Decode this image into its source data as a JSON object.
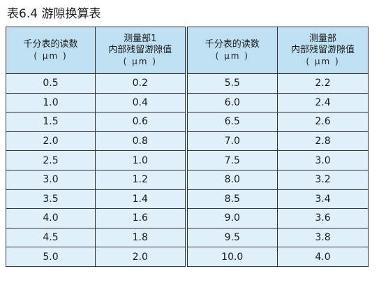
{
  "title": "表6.4 游隙换算表",
  "headers": [
    {
      "line1": "千分表的读数",
      "line2": "",
      "unit": "( μm )"
    },
    {
      "line1": "测量部1",
      "line2": "内部残留游隙值",
      "unit": "( μm )"
    },
    {
      "line1": "千分表的读数",
      "line2": "",
      "unit": "( μm )"
    },
    {
      "line1": "测量部",
      "line2": "内部残留游隙值",
      "unit": "( μm )"
    }
  ],
  "rows": [
    [
      "0.5",
      "0.2",
      "5.5",
      "2.2"
    ],
    [
      "1.0",
      "0.4",
      "6.0",
      "2.4"
    ],
    [
      "1.5",
      "0.6",
      "6.5",
      "2.6"
    ],
    [
      "2.0",
      "0.8",
      "7.0",
      "2.8"
    ],
    [
      "2.5",
      "1.0",
      "7.5",
      "3.0"
    ],
    [
      "3.0",
      "1.2",
      "8.0",
      "3.2"
    ],
    [
      "3.5",
      "1.4",
      "8.5",
      "3.4"
    ],
    [
      "4.0",
      "1.6",
      "9.0",
      "3.6"
    ],
    [
      "4.5",
      "1.8",
      "9.5",
      "3.8"
    ],
    [
      "5.0",
      "2.0",
      "10.0",
      "4.0"
    ]
  ],
  "colors": {
    "header_bg": "#bfe0f2",
    "cell_bg": "#dff0fa",
    "border": "#333333"
  }
}
